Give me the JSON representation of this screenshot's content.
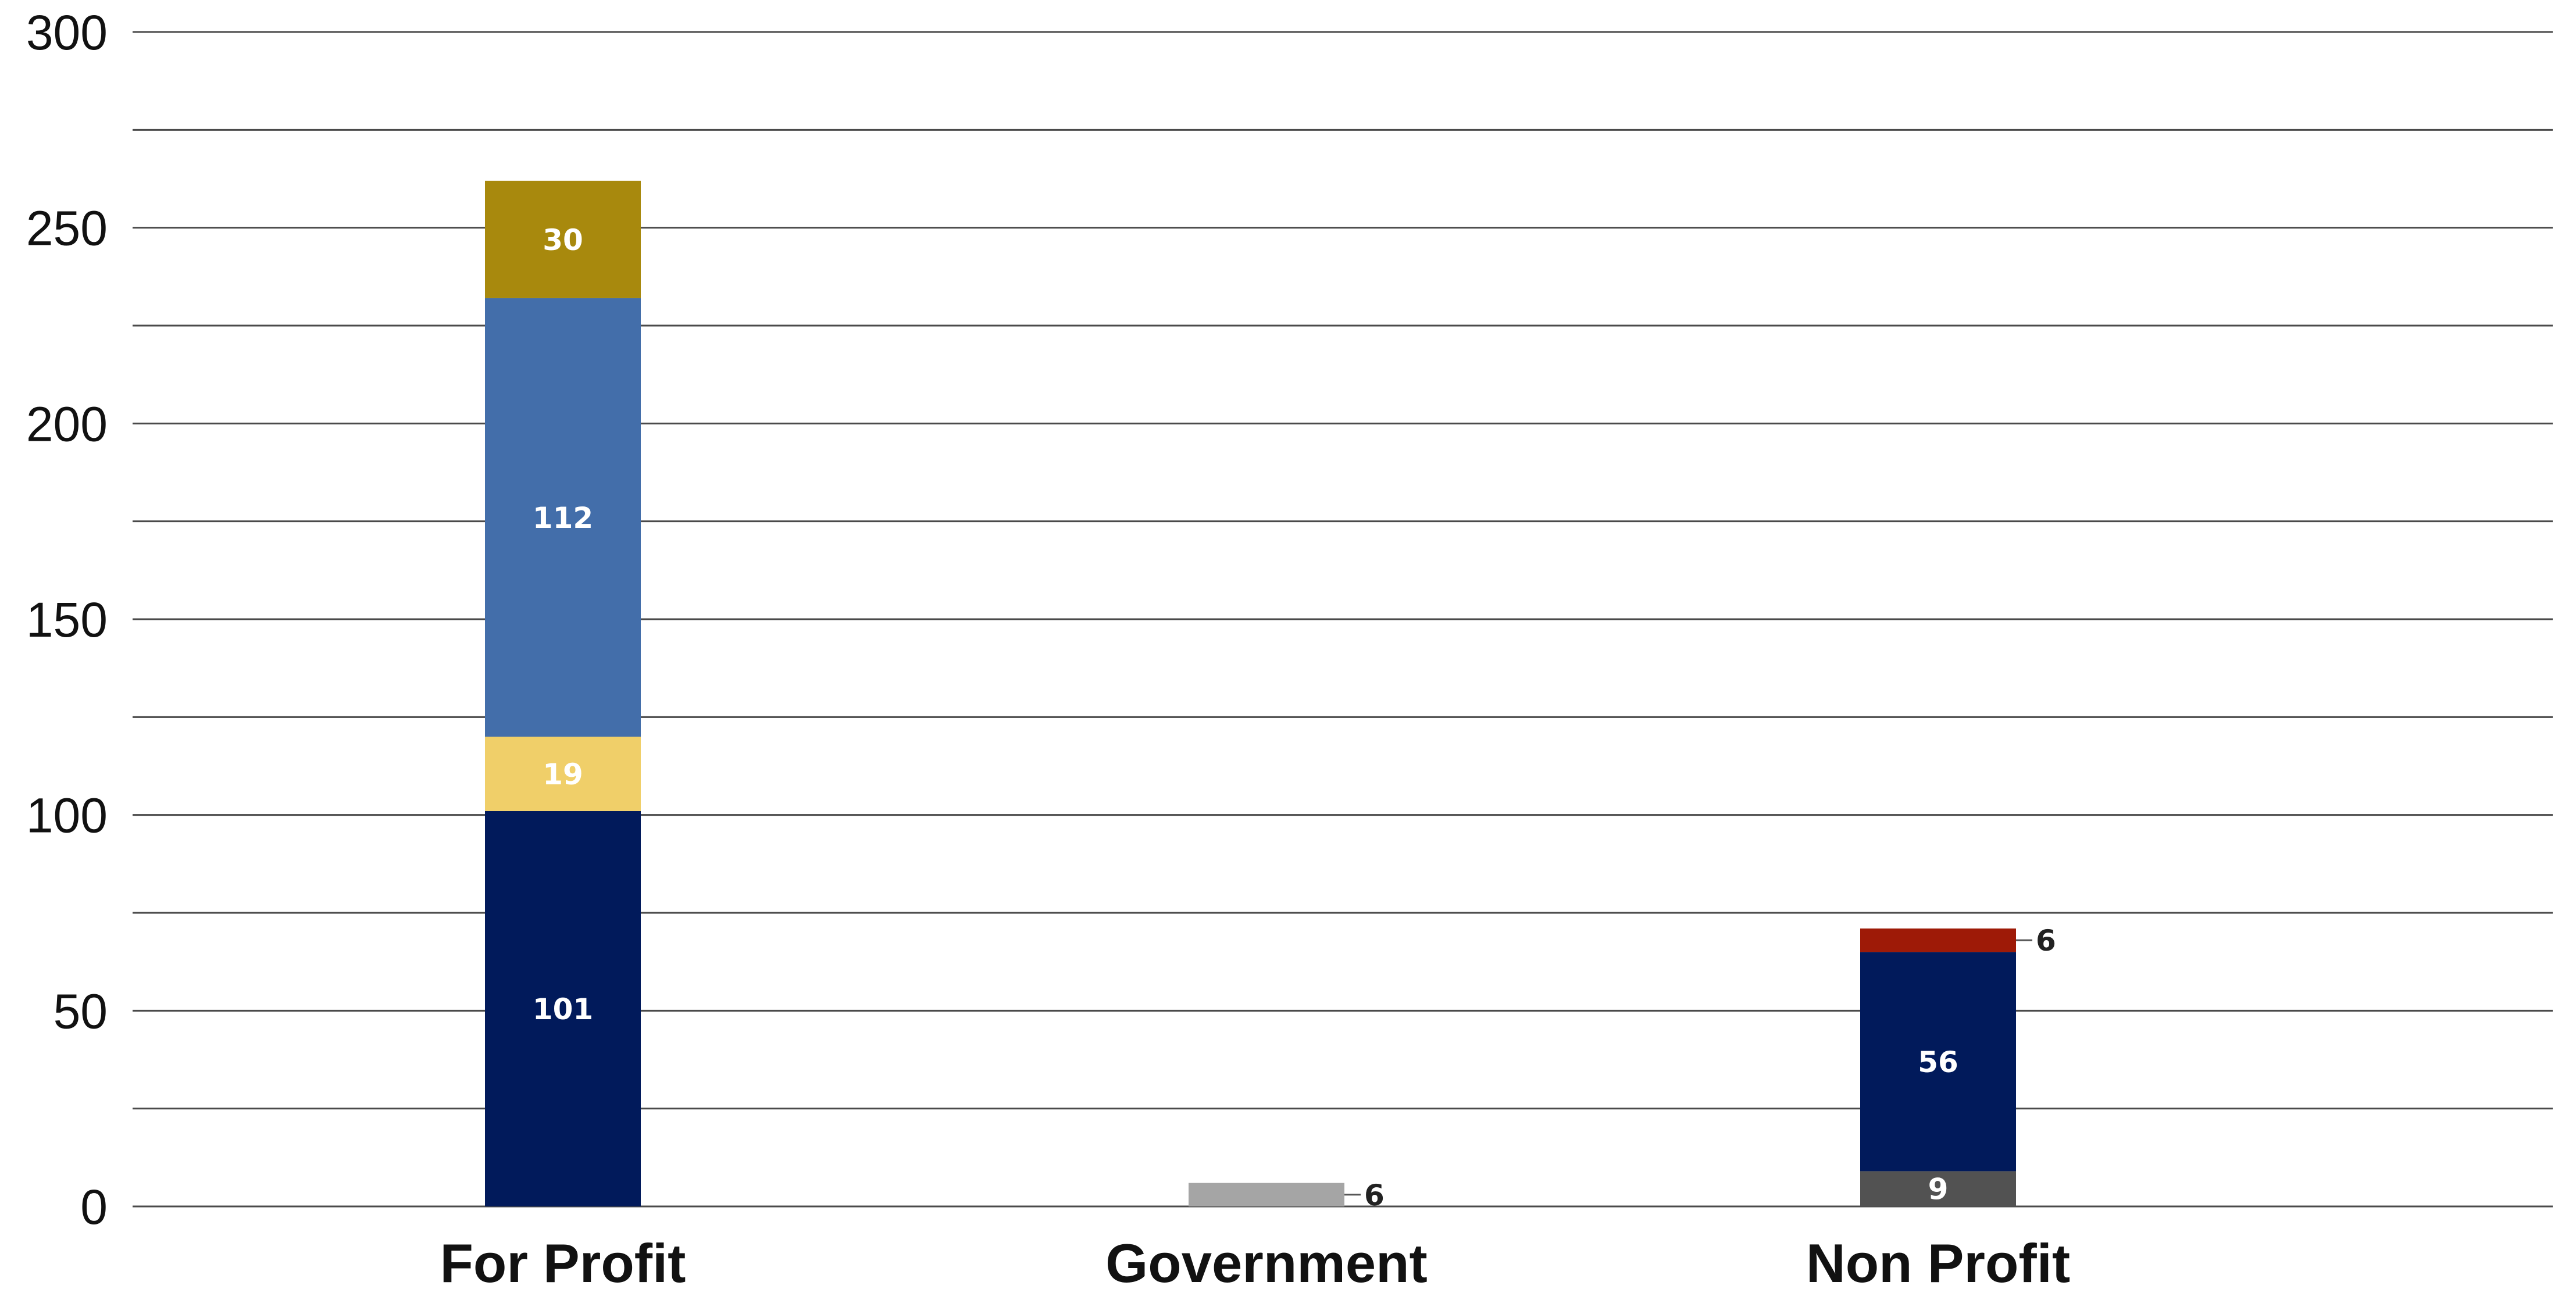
{
  "chart_data": {
    "type": "bar",
    "stacked": true,
    "categories": [
      "For Profit",
      "Government",
      "Non Profit"
    ],
    "ylim": [
      0,
      300
    ],
    "yticks": [
      0,
      50,
      100,
      150,
      200,
      250,
      300
    ],
    "minor_gridlines": [
      25,
      75,
      125,
      175,
      225,
      275
    ],
    "grid": true,
    "legend": "none",
    "title": "",
    "xlabel": "",
    "ylabel": "",
    "stacks": [
      {
        "category": "For Profit",
        "segments": [
          {
            "value": 101,
            "label": "101",
            "color": "#011a5b",
            "label_position": "inside"
          },
          {
            "value": 19,
            "label": "19",
            "color": "#f0cf69",
            "label_position": "inside"
          },
          {
            "value": 112,
            "label": "112",
            "color": "#436eaa",
            "label_position": "inside"
          },
          {
            "value": 30,
            "label": "30",
            "color": "#a8890d",
            "label_position": "inside"
          }
        ]
      },
      {
        "category": "Government",
        "segments": [
          {
            "value": 6,
            "label": "6",
            "color": "#a5a5a5",
            "label_position": "outside"
          }
        ]
      },
      {
        "category": "Non Profit",
        "segments": [
          {
            "value": 9,
            "label": "9",
            "color": "#525252",
            "label_position": "inside"
          },
          {
            "value": 56,
            "label": "56",
            "color": "#011a5b",
            "label_position": "inside"
          },
          {
            "value": 6,
            "label": "6",
            "color": "#9e1a07",
            "label_position": "outside"
          }
        ]
      }
    ]
  }
}
